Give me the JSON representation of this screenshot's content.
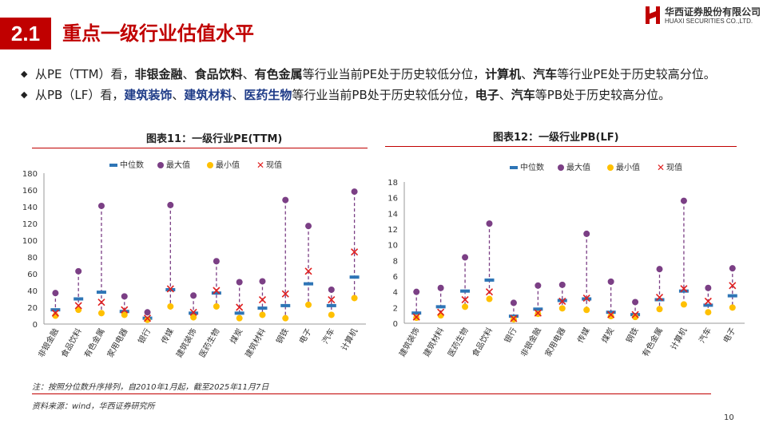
{
  "header": {
    "section_number": "2.1",
    "title": "重点一级行业估值水平"
  },
  "logo": {
    "cn": "华西证券股份有限公司",
    "en": "HUAXI SECURITIES CO.,LTD."
  },
  "bullets": [
    {
      "parts": [
        {
          "t": "从PE（TTM）看，",
          "s": "n"
        },
        {
          "t": "非银金融",
          "s": "b"
        },
        {
          "t": "、",
          "s": "n"
        },
        {
          "t": "食品饮料",
          "s": "b"
        },
        {
          "t": "、",
          "s": "n"
        },
        {
          "t": "有色金属",
          "s": "b"
        },
        {
          "t": "等行业当前PE处于历史较低分位，",
          "s": "n"
        },
        {
          "t": "计算机",
          "s": "b"
        },
        {
          "t": "、",
          "s": "n"
        },
        {
          "t": "汽车",
          "s": "b"
        },
        {
          "t": "等行业PE处于历史较高分位。",
          "s": "n"
        }
      ]
    },
    {
      "parts": [
        {
          "t": "从PB（LF）看，",
          "s": "n"
        },
        {
          "t": "建筑装饰",
          "s": "blue"
        },
        {
          "t": "、",
          "s": "n"
        },
        {
          "t": "建筑材料",
          "s": "blue"
        },
        {
          "t": "、",
          "s": "n"
        },
        {
          "t": "医药生物",
          "s": "blue"
        },
        {
          "t": "等行业当前PB处于历史较低分位，",
          "s": "n"
        },
        {
          "t": "电子",
          "s": "b"
        },
        {
          "t": "、",
          "s": "n"
        },
        {
          "t": "汽车",
          "s": "b"
        },
        {
          "t": "等PB处于历史较高分位。",
          "s": "n"
        }
      ]
    }
  ],
  "legend_labels": [
    "中位数",
    "最大值",
    "最小值",
    "现值"
  ],
  "colors": {
    "median": "#2e75b6",
    "max": "#7b3f85",
    "min": "#ffc000",
    "current": "#e02020",
    "accent": "#c00000"
  },
  "chart_data": [
    {
      "type": "scatter",
      "title": "图表11：一级行业PE(TTM)",
      "ylim": [
        0,
        180
      ],
      "yticks": [
        0,
        20,
        40,
        60,
        80,
        100,
        120,
        140,
        160,
        180
      ],
      "categories": [
        "非银金融",
        "食品饮料",
        "有色金属",
        "家用电器",
        "银行",
        "传媒",
        "建筑装饰",
        "医药生物",
        "煤炭",
        "建筑材料",
        "钢铁",
        "电子",
        "汽车",
        "计算机"
      ],
      "series": [
        {
          "name": "中位数",
          "values": [
            17,
            30,
            38,
            15,
            7,
            41,
            13,
            37,
            13,
            19,
            22,
            48,
            22,
            56
          ]
        },
        {
          "name": "最大值",
          "values": [
            37,
            63,
            141,
            33,
            14,
            142,
            34,
            75,
            50,
            51,
            148,
            117,
            41,
            158
          ]
        },
        {
          "name": "最小值",
          "values": [
            10,
            17,
            13,
            11,
            5,
            21,
            8,
            21,
            7,
            11,
            7,
            23,
            11,
            31
          ]
        },
        {
          "name": "现值",
          "values": [
            13,
            22,
            26,
            17,
            7,
            42,
            14,
            40,
            20,
            29,
            36,
            63,
            29,
            86
          ]
        }
      ]
    },
    {
      "type": "scatter",
      "title": "图表12：一级行业PB(LF)",
      "ylim": [
        0,
        18
      ],
      "yticks": [
        0,
        2,
        4,
        6,
        8,
        10,
        12,
        14,
        16,
        18
      ],
      "categories": [
        "建筑装饰",
        "建筑材料",
        "医药生物",
        "食品饮料",
        "银行",
        "非银金融",
        "家用电器",
        "传媒",
        "煤炭",
        "钢铁",
        "有色金属",
        "计算机",
        "汽车",
        "电子"
      ],
      "series": [
        {
          "name": "中位数",
          "values": [
            1.3,
            2.1,
            4.1,
            5.5,
            0.9,
            1.8,
            2.9,
            3.1,
            1.4,
            1.1,
            3.0,
            4.1,
            2.3,
            3.5
          ]
        },
        {
          "name": "最大值",
          "values": [
            4.0,
            4.5,
            8.4,
            12.7,
            2.6,
            4.8,
            4.9,
            11.4,
            5.3,
            2.7,
            6.9,
            15.6,
            4.5,
            7.0
          ]
        },
        {
          "name": "最小值",
          "values": [
            0.7,
            1.0,
            2.1,
            3.1,
            0.5,
            1.2,
            1.9,
            1.7,
            0.9,
            0.8,
            1.8,
            2.4,
            1.4,
            2.0
          ]
        },
        {
          "name": "现值",
          "values": [
            0.8,
            1.4,
            3.0,
            4.0,
            0.6,
            1.3,
            2.8,
            3.2,
            1.1,
            1.1,
            3.3,
            4.4,
            2.8,
            4.8
          ]
        }
      ]
    }
  ],
  "footnote": "注：按照分位数升序排列，自2010年1月起，截至2025年11月7日",
  "source": "资料来源：wind，华西证券研究所",
  "page_number": "10"
}
